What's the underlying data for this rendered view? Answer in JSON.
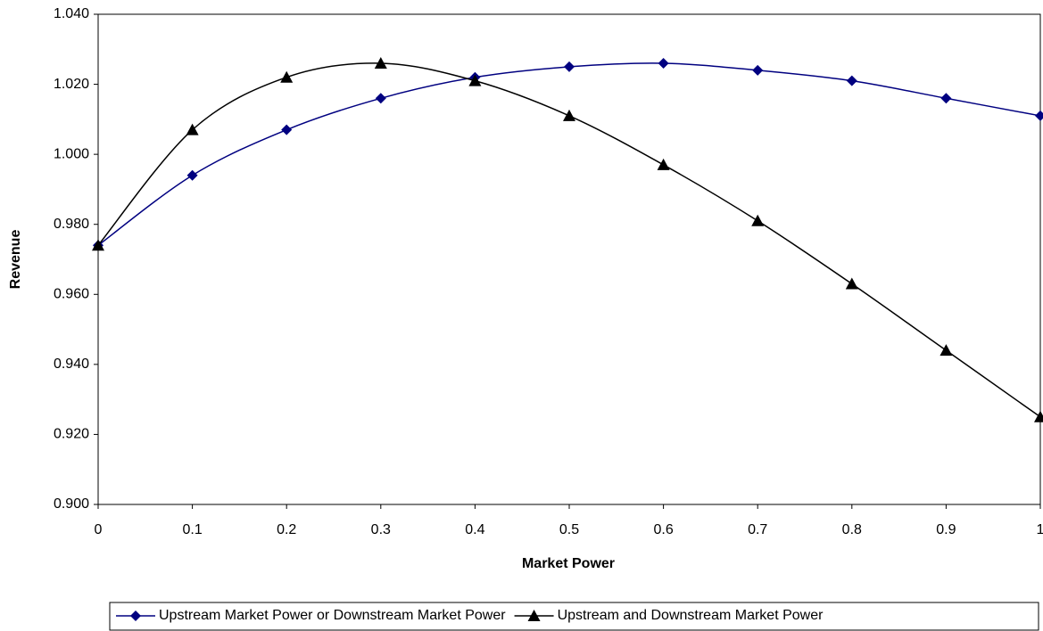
{
  "chart_data": {
    "type": "line",
    "x_label": "Market Power",
    "y_label": "Revenue",
    "x": [
      0,
      0.1,
      0.2,
      0.3,
      0.4,
      0.5,
      0.6,
      0.7,
      0.8,
      0.9,
      1
    ],
    "xlim": [
      0,
      1
    ],
    "xticks": [
      0,
      0.1,
      0.2,
      0.3,
      0.4,
      0.5,
      0.6,
      0.7,
      0.8,
      0.9,
      1
    ],
    "ylim": [
      0.9,
      1.04
    ],
    "yticks": [
      {
        "value": 0.9,
        "label": "0.900"
      },
      {
        "value": 0.92,
        "label": "0.920"
      },
      {
        "value": 0.94,
        "label": "0.940"
      },
      {
        "value": 0.96,
        "label": "0.960"
      },
      {
        "value": 0.98,
        "label": "0.980"
      },
      {
        "value": 1.0,
        "label": "1.000"
      },
      {
        "value": 1.02,
        "label": "1.020"
      },
      {
        "value": 1.04,
        "label": "1.040"
      }
    ],
    "grid": false,
    "legend": "bottom",
    "series": [
      {
        "name": "Upstream Market Power or Downstream Market Power",
        "color": "#000080",
        "marker": "diamond",
        "values": [
          0.974,
          0.994,
          1.007,
          1.016,
          1.022,
          1.025,
          1.026,
          1.024,
          1.021,
          1.016,
          1.011
        ]
      },
      {
        "name": "Upstream and Downstream Market Power",
        "color": "#000000",
        "marker": "triangle",
        "values": [
          0.974,
          1.007,
          1.022,
          1.026,
          1.021,
          1.011,
          0.997,
          0.981,
          0.963,
          0.944,
          0.925
        ]
      }
    ]
  }
}
